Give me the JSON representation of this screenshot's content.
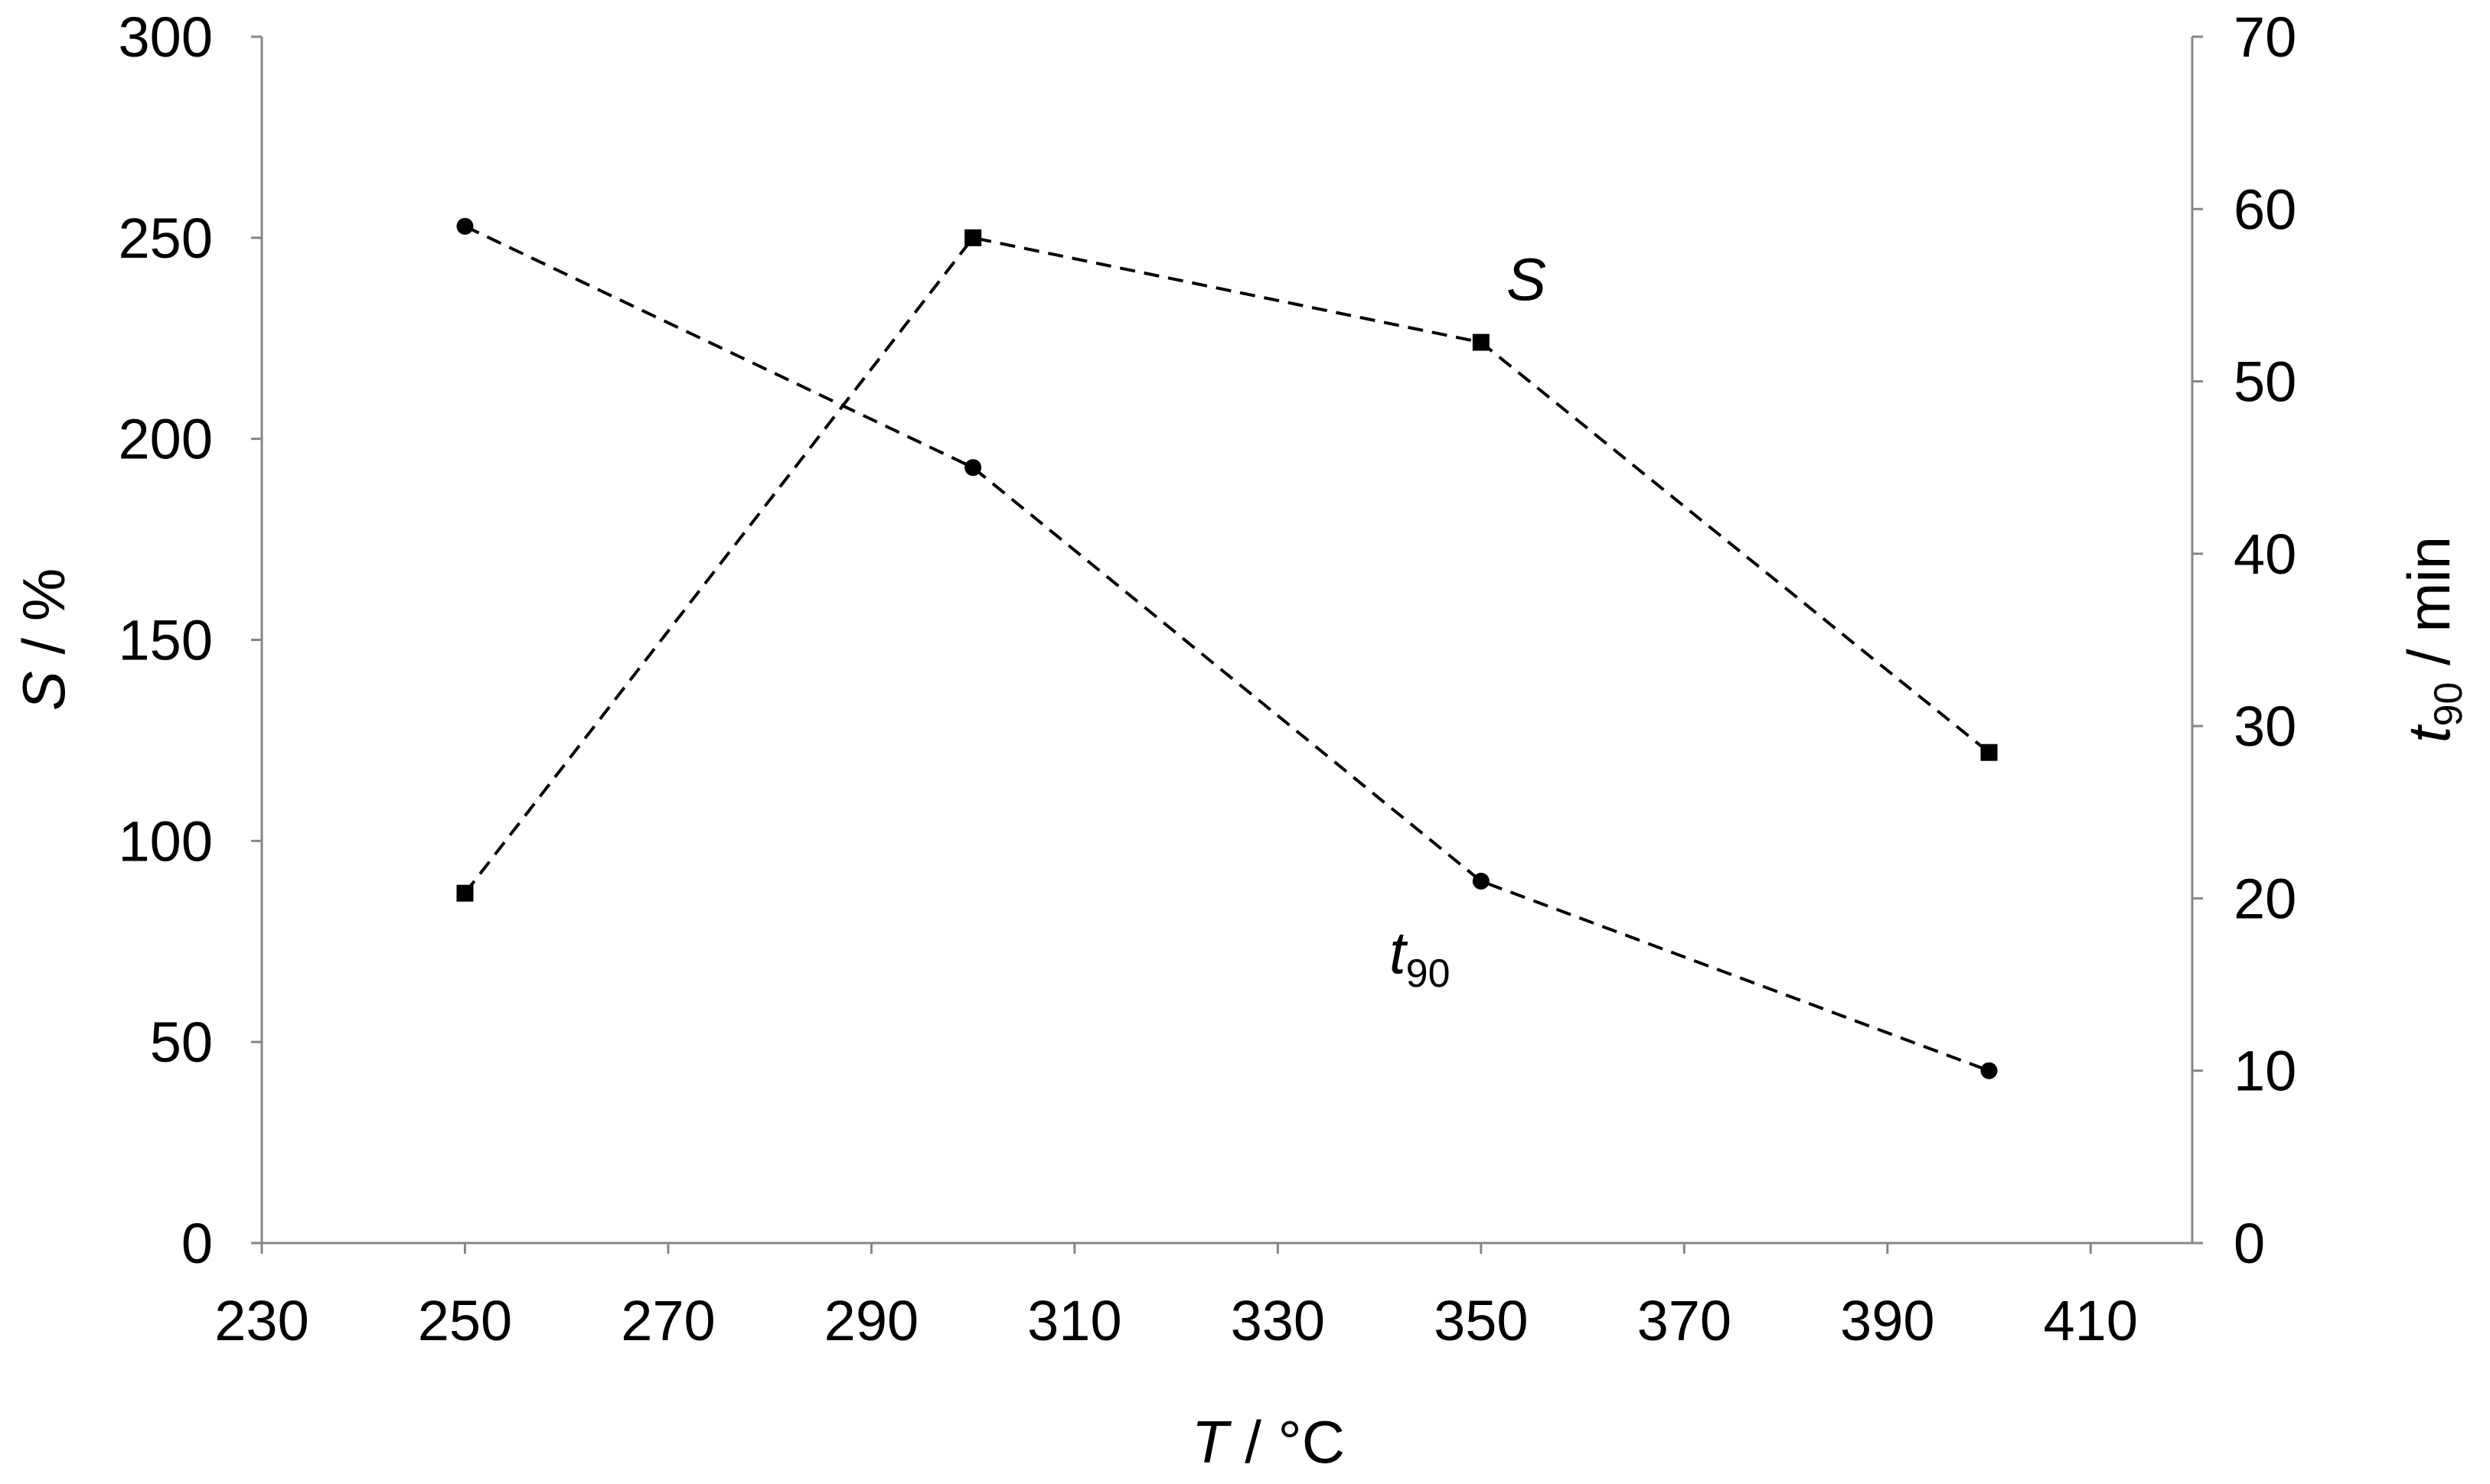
{
  "chart_data": {
    "type": "line",
    "x_axis": {
      "label_italic": "T",
      "label_rest": " / °C",
      "range": [
        230,
        420
      ],
      "ticks": [
        "230",
        "250",
        "270",
        "290",
        "310",
        "330",
        "350",
        "370",
        "390",
        "410"
      ]
    },
    "y_axis_left": {
      "label_italic": "S",
      "label_rest": " / %",
      "range": [
        0,
        300
      ],
      "ticks": [
        "0",
        "50",
        "100",
        "150",
        "200",
        "250",
        "300"
      ]
    },
    "y_axis_right": {
      "label_italic": "t",
      "label_sub": "90",
      "label_rest": " / min",
      "range": [
        0,
        70
      ],
      "ticks": [
        "0",
        "10",
        "20",
        "30",
        "40",
        "50",
        "60",
        "70"
      ]
    },
    "grid": false,
    "series": [
      {
        "name": "S",
        "axis": "left",
        "marker": "square",
        "line": "dashed",
        "x": [
          250,
          300,
          350,
          400
        ],
        "y": [
          87,
          250,
          224,
          122
        ]
      },
      {
        "name": "t90",
        "axis": "right",
        "marker": "circle",
        "line": "dashed",
        "x": [
          250,
          300,
          350,
          400
        ],
        "y": [
          59,
          45,
          21,
          10
        ]
      }
    ],
    "annotations": [
      {
        "series": "S",
        "text_italic": "S",
        "text_sub": ""
      },
      {
        "series": "t90",
        "text_italic": "t",
        "text_sub": "90"
      }
    ]
  }
}
